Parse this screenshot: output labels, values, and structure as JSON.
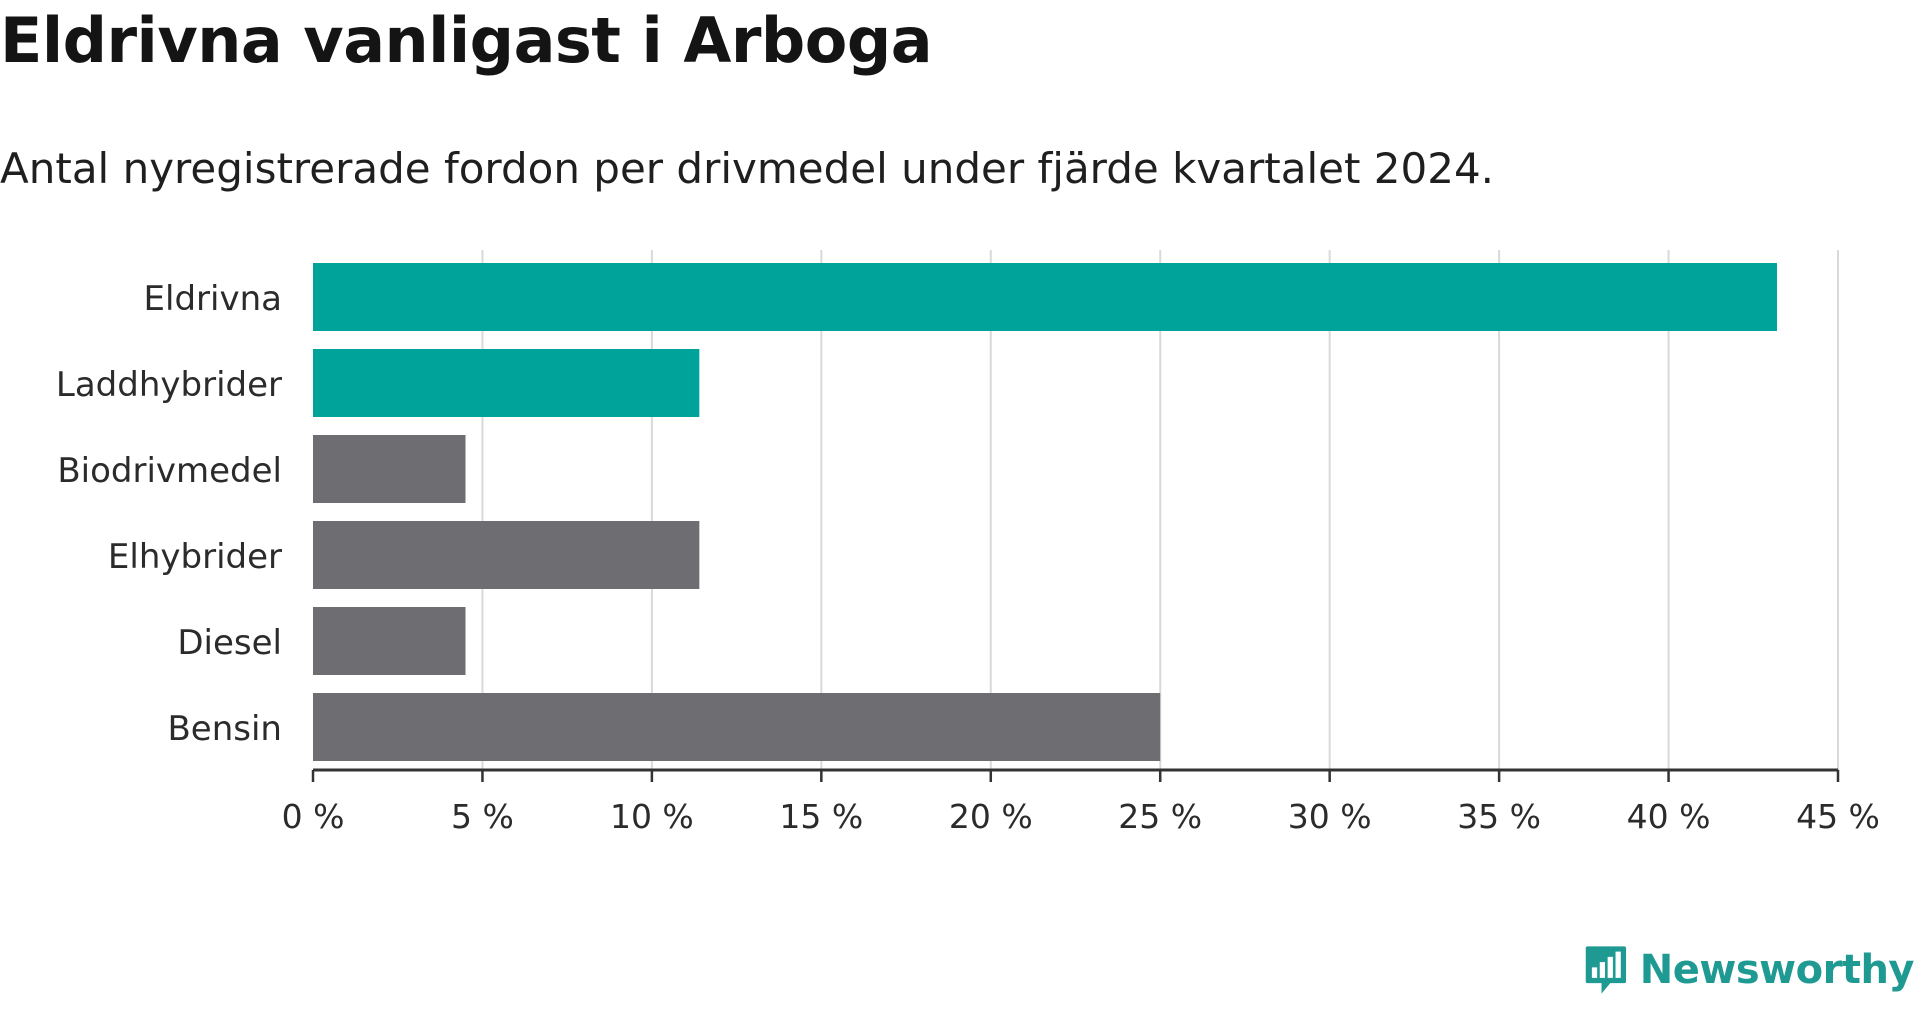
{
  "title": "Eldrivna vanligast i Arboga",
  "subtitle": "Antal nyregistrerade fordon per drivmedel under fjärde kvartalet 2024.",
  "logo": {
    "text": "Newsworthy",
    "icon": "bar-chart-bubble-icon"
  },
  "colors": {
    "highlight": "#00a39a",
    "other": "#6e6d72",
    "grid": "#d9d9d9",
    "axis": "#333333"
  },
  "chart_data": {
    "type": "bar",
    "orientation": "horizontal",
    "title": "Eldrivna vanligast i Arboga",
    "subtitle": "Antal nyregistrerade fordon per drivmedel under fjärde kvartalet 2024.",
    "categories": [
      "Eldrivna",
      "Laddhybrider",
      "Biodrivmedel",
      "Elhybrider",
      "Diesel",
      "Bensin"
    ],
    "values": [
      43.2,
      11.4,
      4.5,
      11.4,
      4.5,
      25.0
    ],
    "highlight": [
      true,
      true,
      false,
      false,
      false,
      false
    ],
    "xlim": [
      0,
      45
    ],
    "ticks": [
      0,
      5,
      10,
      15,
      20,
      25,
      30,
      35,
      40,
      45
    ],
    "tick_labels": [
      "0 %",
      "5 %",
      "10 %",
      "15 %",
      "20 %",
      "25 %",
      "30 %",
      "35 %",
      "40 %",
      "45 %"
    ],
    "grid": true,
    "legend": "none"
  }
}
